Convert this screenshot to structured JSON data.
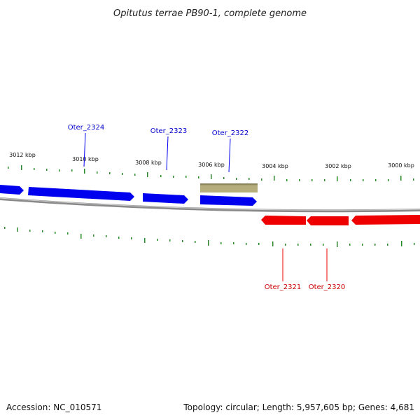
{
  "title": "Opitutus terrae PB90-1, complete genome",
  "footer": {
    "accession": "Accession: NC_010571",
    "summary": "Topology: circular; Length: 5,957,605 bp; Genes: 4,681"
  },
  "colors": {
    "forward_gene": "#0000ee",
    "reverse_gene": "#ee0000",
    "other_feature": "#b5ad7c",
    "backbone": "#8a8a8a",
    "ticks": "#2a8a2a"
  },
  "scale_labels": [
    "3012 kbp",
    "3010 kbp",
    "3008 kbp",
    "3006 kbp",
    "3004 kbp",
    "3002 kbp",
    "3000 kbp"
  ],
  "gene_labels": [
    "Oter_2324",
    "Oter_2323",
    "Oter_2322",
    "Oter_2321",
    "Oter_2320"
  ]
}
